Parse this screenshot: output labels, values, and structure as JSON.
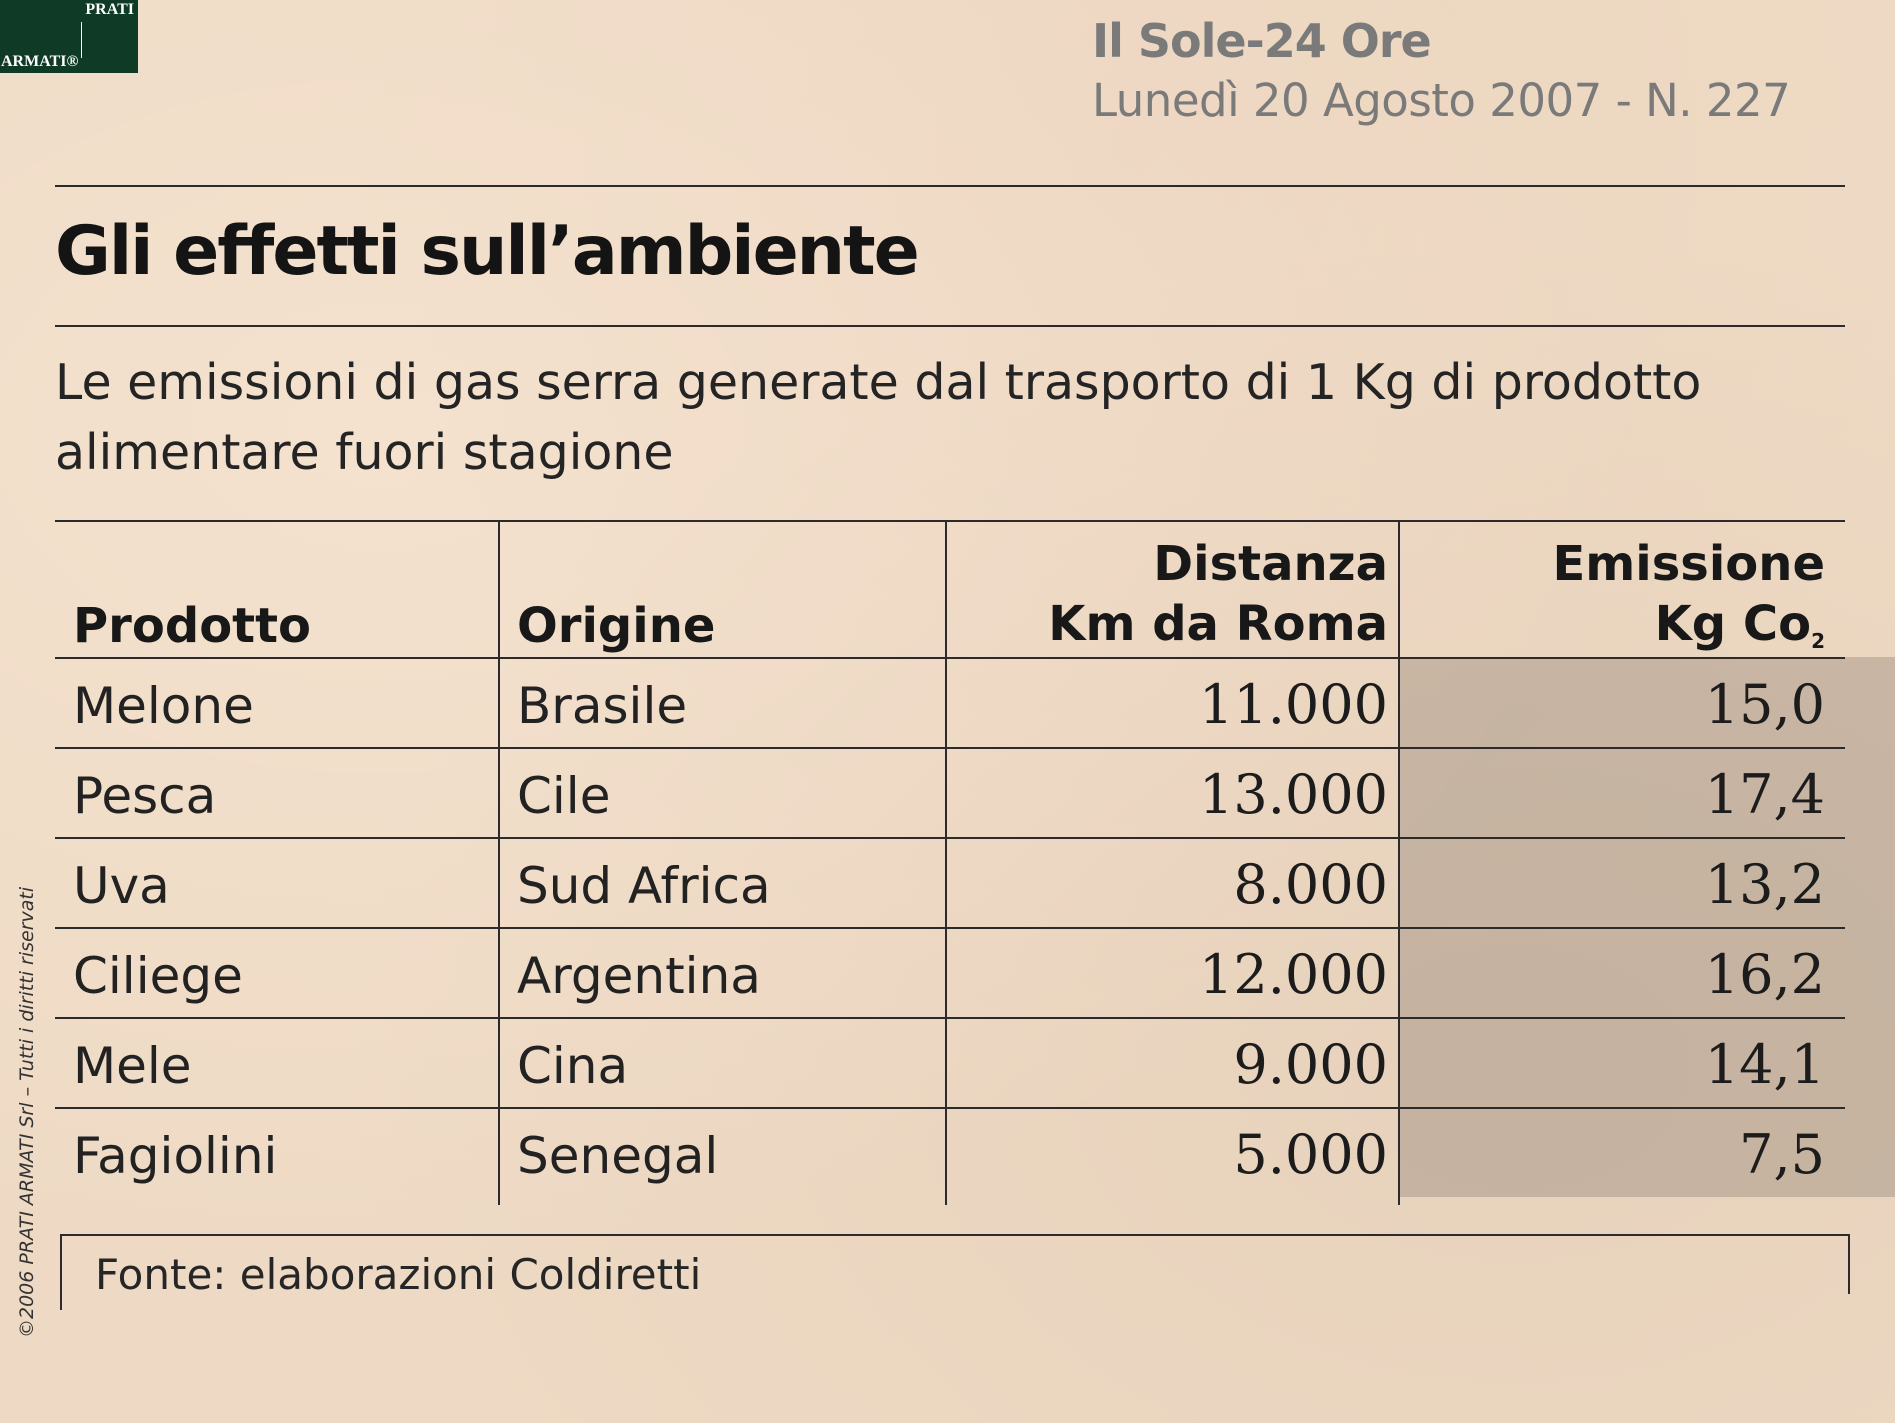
{
  "logo": {
    "line1": "PRATI",
    "line2": "ARMATI®"
  },
  "masthead": {
    "name": "Il Sole-24 Ore",
    "date": "Lunedì 20 Agosto 2007 - N. 227"
  },
  "title": "Gli effetti sull’ambiente",
  "subtitle": "Le emissioni di gas serra generate dal trasporto di 1 Kg di prodotto alimentare fuori stagione",
  "table": {
    "headers": {
      "product": "Prodotto",
      "origin": "Origine",
      "distance_line1": "Distanza",
      "distance_line2": "Km da Roma",
      "emission_line1": "Emissione",
      "emission_line2": "Kg Co",
      "emission_sub": "2"
    },
    "rows": [
      {
        "product": "Melone",
        "origin": "Brasile",
        "distance": "11.000",
        "emission": "15,0"
      },
      {
        "product": "Pesca",
        "origin": "Cile",
        "distance": "13.000",
        "emission": "17,4"
      },
      {
        "product": "Uva",
        "origin": "Sud Africa",
        "distance": "8.000",
        "emission": "13,2"
      },
      {
        "product": "Ciliege",
        "origin": "Argentina",
        "distance": "12.000",
        "emission": "16,2"
      },
      {
        "product": "Mele",
        "origin": "Cina",
        "distance": "9.000",
        "emission": "14,1"
      },
      {
        "product": "Fagiolini",
        "origin": "Senegal",
        "distance": "5.000",
        "emission": "7,5"
      }
    ]
  },
  "source": "Fonte: elaborazioni Coldiretti",
  "copyright": "©2006 PRATI ARMATI Srl – Tutti i diritti riservati"
}
